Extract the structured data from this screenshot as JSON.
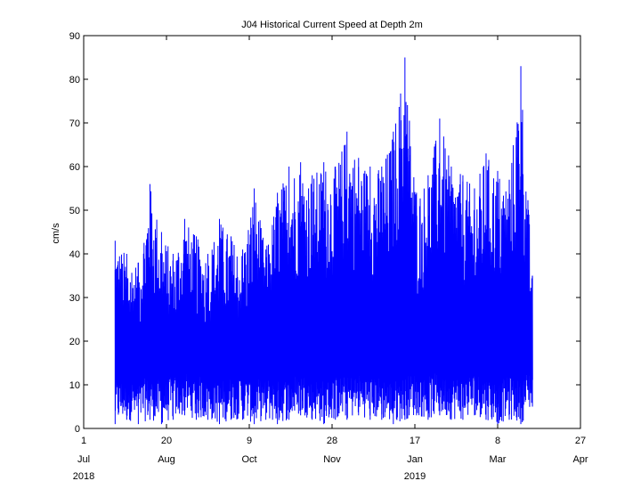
{
  "chart_data": {
    "type": "line",
    "title": "J04 Historical Current Speed at Depth 2m",
    "ylabel": "cm/s",
    "xlabel": "",
    "ylim": [
      0,
      90
    ],
    "yticks": [
      0,
      10,
      20,
      30,
      40,
      50,
      60,
      70,
      80,
      90
    ],
    "xlim": [
      "2018-07-01",
      "2019-04-27"
    ],
    "xticks": [
      {
        "date": "2018-07-01",
        "day": "1",
        "month": "Jul",
        "year": "2018"
      },
      {
        "date": "2018-08-20",
        "day": "20",
        "month": "Aug",
        "year": ""
      },
      {
        "date": "2018-10-09",
        "day": "9",
        "month": "Oct",
        "year": ""
      },
      {
        "date": "2018-11-28",
        "day": "28",
        "month": "Nov",
        "year": ""
      },
      {
        "date": "2019-01-17",
        "day": "17",
        "month": "Jan",
        "year": "2019"
      },
      {
        "date": "2019-03-08",
        "day": "8",
        "month": "Mar",
        "year": ""
      },
      {
        "date": "2019-04-27",
        "day": "27",
        "month": "Apr",
        "year": ""
      }
    ],
    "grid": false,
    "series_color": "#0000ff",
    "series": [
      {
        "x": [
          "2018-07-20",
          "2018-07-27",
          "2018-08-03",
          "2018-08-10",
          "2018-08-17",
          "2018-08-24",
          "2018-08-31",
          "2018-09-07",
          "2018-09-14",
          "2018-09-21",
          "2018-09-28",
          "2018-10-05",
          "2018-10-12",
          "2018-10-19",
          "2018-10-26",
          "2018-11-02",
          "2018-11-09",
          "2018-11-16",
          "2018-11-23",
          "2018-11-30",
          "2018-12-07",
          "2018-12-14",
          "2018-12-21",
          "2018-12-28",
          "2019-01-04",
          "2019-01-11",
          "2019-01-18",
          "2019-01-25",
          "2019-02-01",
          "2019-02-08",
          "2019-02-15",
          "2019-02-22",
          "2019-03-01",
          "2019-03-08",
          "2019-03-15",
          "2019-03-22",
          "2019-03-29"
        ],
        "max": [
          43,
          40,
          38,
          56,
          45,
          40,
          48,
          44,
          40,
          48,
          44,
          41,
          55,
          41,
          54,
          60,
          61,
          58,
          61,
          60,
          68,
          62,
          60,
          60,
          68,
          85,
          54,
          58,
          71,
          60,
          58,
          55,
          63,
          59,
          57,
          83,
          35
        ],
        "min": [
          1,
          2,
          1,
          2,
          1,
          2,
          3,
          2,
          2,
          1,
          2,
          2,
          1,
          2,
          1,
          2,
          3,
          2,
          1,
          2,
          2,
          3,
          2,
          2,
          1,
          2,
          3,
          2,
          3,
          2,
          2,
          3,
          2,
          1,
          2,
          1,
          5
        ]
      }
    ]
  }
}
